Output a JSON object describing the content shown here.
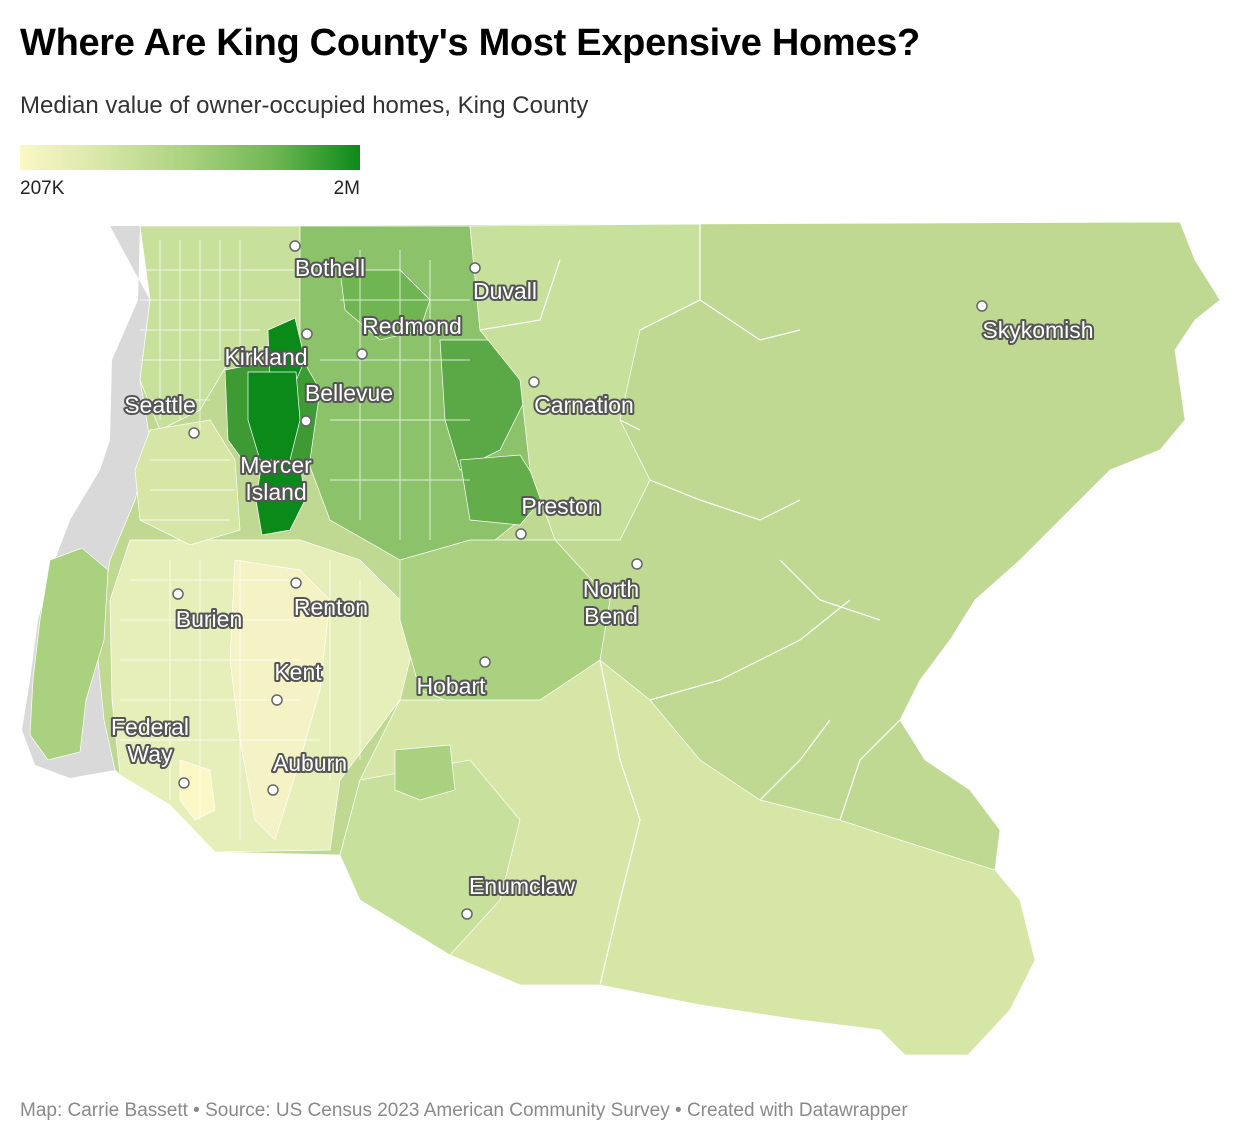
{
  "header": {
    "title": "Where Are King County's Most Expensive Homes?",
    "subtitle": "Median value of owner-occupied homes, King County"
  },
  "legend": {
    "min_label": "207K",
    "max_label": "2M",
    "colors": [
      "#fbf8c6",
      "#d6e6a6",
      "#a9d17f",
      "#6fb653",
      "#0b8a1a"
    ]
  },
  "map": {
    "water_color": "#d9d9d9",
    "base_color": "#bfd993",
    "cities": [
      {
        "name": "Bothell",
        "lines": [
          "Bothell"
        ]
      },
      {
        "name": "Duvall",
        "lines": [
          "Duvall"
        ]
      },
      {
        "name": "Redmond",
        "lines": [
          "Redmond"
        ]
      },
      {
        "name": "Skykomish",
        "lines": [
          "Skykomish"
        ]
      },
      {
        "name": "Kirkland",
        "lines": [
          "Kirkland"
        ]
      },
      {
        "name": "Bellevue",
        "lines": [
          "Bellevue"
        ]
      },
      {
        "name": "Seattle",
        "lines": [
          "Seattle"
        ]
      },
      {
        "name": "Carnation",
        "lines": [
          "Carnation"
        ]
      },
      {
        "name": "Mercer Island",
        "lines": [
          "Mercer",
          "Island"
        ]
      },
      {
        "name": "Preston",
        "lines": [
          "Preston"
        ]
      },
      {
        "name": "North Bend",
        "lines": [
          "North",
          "Bend"
        ]
      },
      {
        "name": "Renton",
        "lines": [
          "Renton"
        ]
      },
      {
        "name": "Burien",
        "lines": [
          "Burien"
        ]
      },
      {
        "name": "Kent",
        "lines": [
          "Kent"
        ]
      },
      {
        "name": "Hobart",
        "lines": [
          "Hobart"
        ]
      },
      {
        "name": "Federal Way",
        "lines": [
          "Federal",
          "Way"
        ]
      },
      {
        "name": "Auburn",
        "lines": [
          "Auburn"
        ]
      },
      {
        "name": "Enumclaw",
        "lines": [
          "Enumclaw"
        ]
      }
    ]
  },
  "footer": {
    "credit": "Map: Carrie Bassett • Source: US Census 2023 American Community Survey • Created with Datawrapper"
  }
}
